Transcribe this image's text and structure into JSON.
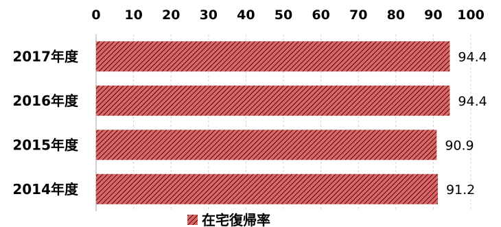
{
  "chart_data": {
    "type": "bar",
    "orientation": "horizontal",
    "categories": [
      "2017年度",
      "2016年度",
      "2015年度",
      "2014年度"
    ],
    "series": [
      {
        "name": "在宅復帰率",
        "values": [
          94.4,
          94.4,
          90.9,
          91.2
        ]
      }
    ],
    "data_labels": [
      "94.4",
      "94.4",
      "90.9",
      "91.2"
    ],
    "xlim": [
      0,
      100
    ],
    "x_ticks": [
      0,
      10,
      20,
      30,
      40,
      50,
      60,
      70,
      80,
      90,
      100
    ],
    "x_axis_position": "top",
    "grid": true,
    "legend_position": "bottom",
    "bar_color": "#e06666",
    "hatch_color": "#3a0c0c"
  }
}
